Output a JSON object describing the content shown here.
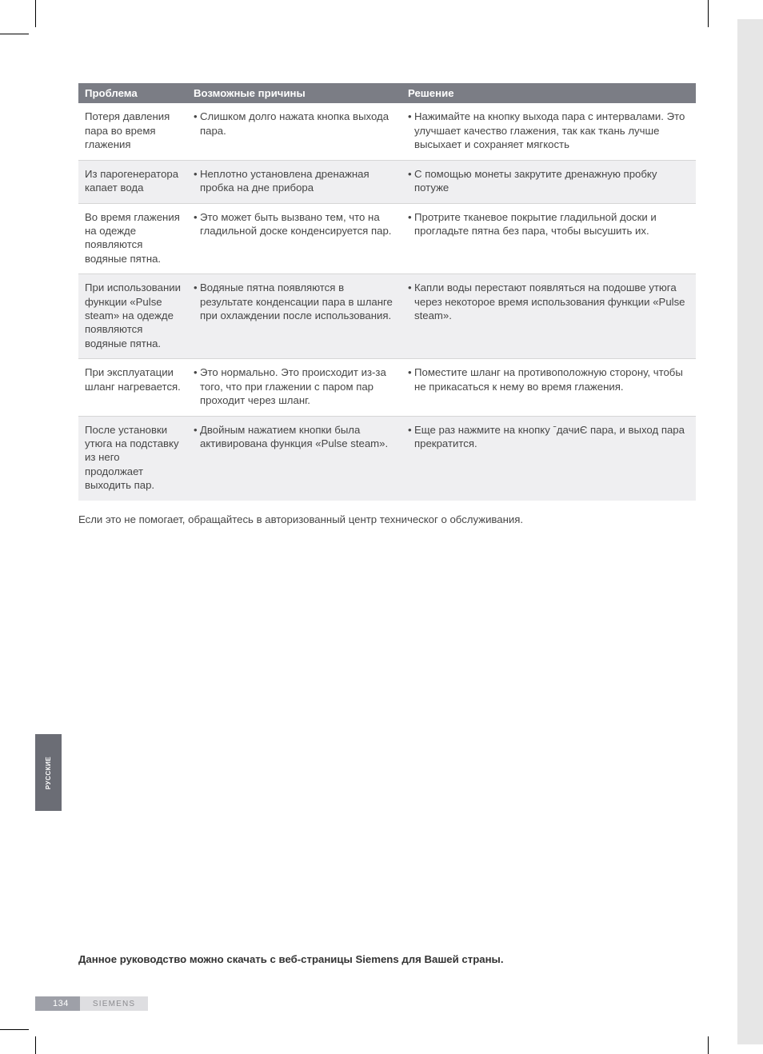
{
  "colors": {
    "header_bg": "#7b7d85",
    "header_fg": "#ffffff",
    "row_alt_bg": "#efeff1",
    "row_border": "#d6d6d6",
    "text": "#464646",
    "tab_bg": "#6b6d75",
    "footer_page_bg": "#9ea0a8",
    "footer_brand_bg": "#dedee1",
    "gray_strip": "#e6e6e6"
  },
  "table": {
    "headers": {
      "problem": "Проблема",
      "cause": "Возможные причины",
      "solution": "Решение"
    },
    "rows": [
      {
        "alt": false,
        "problem": "Потеря давления пара во время глажения",
        "cause": "Слишком долго нажата кнопка выхода пара.",
        "solution": "Нажимайте на кнопку выхода пара с интервалами. Это улучшает качество глажения, так как ткань лучше высыхает и сохраняет мягкость"
      },
      {
        "alt": true,
        "problem": "Из парогенератора капает вода",
        "cause": "Неплотно установлена дренажная пробка на дне прибора",
        "solution": "С помощью монеты закрутите дренажную пробку потуже"
      },
      {
        "alt": false,
        "problem": "Во время глажения на одежде появляются водяные пятна.",
        "cause": "Это может быть вызвано тем, что на гладильной доске конденсируется пар.",
        "solution": "Протрите тканевое покрытие гладильной доски и прогладьте пятна без пара, чтобы высушить их."
      },
      {
        "alt": true,
        "problem": "При использовании функции «Pulse steam» на одежде появляются водяные пятна.",
        "cause": "Водяные пятна появляются в результате конденсации пара в шланге при охлаждении после использования.",
        "solution": "Капли воды перестают появляться на подошве утюга через некоторое время использования функции «Pulse steam»."
      },
      {
        "alt": false,
        "problem": "При эксплуатации шланг нагревается.",
        "cause": "Это нормально. Это происходит из-за того, что при глажении с паром пар проходит через шланг.",
        "solution": "Поместите шланг на противоположную сторону, чтобы не прикасаться к нему во время глажения."
      },
      {
        "alt": true,
        "problem": "После установки утюга на подставку из него продолжает выходить пар.",
        "cause": "Двойным нажатием кнопки была активирована функция «Pulse steam».",
        "solution": "Еще раз нажмите на кнопку ˉдачиЄ пара, и выход пара прекратится."
      }
    ]
  },
  "note_below": "Если это не помогает, обращайтесь в авторизованный центр техническог о обслуживания.",
  "bottom_note": "Данное руководство можно скачать с веб-страницы Siemens для Вашей страны.",
  "lang_tab": "РУССКИЕ",
  "footer": {
    "page": "134",
    "brand": "SIEMENS"
  },
  "bullet": "•"
}
